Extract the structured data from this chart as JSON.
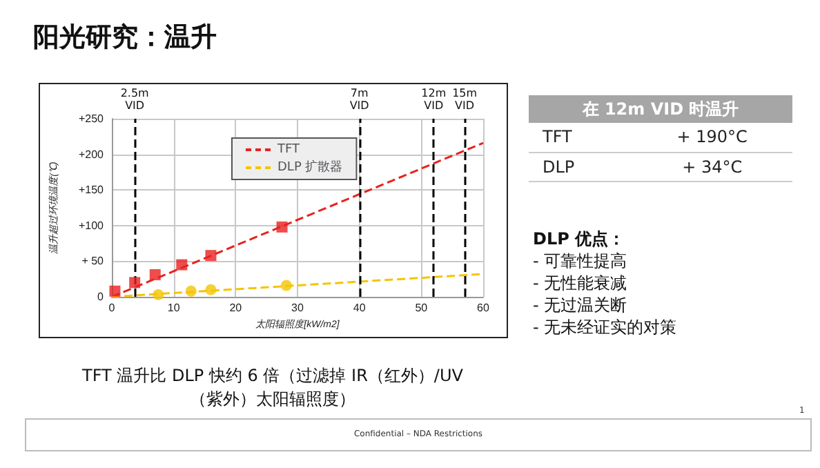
{
  "chart_data": {
    "type": "scatter",
    "title": "阳光研究：温升",
    "xlabel": "太阳辐照度[kW/m2]",
    "ylabel": "温升超过环境温度(℃)",
    "xlim": [
      0,
      60
    ],
    "xticks": [
      0,
      10,
      20,
      30,
      40,
      50,
      60
    ],
    "ylim": [
      0,
      250
    ],
    "yticks": [
      {
        "value": 0,
        "label": "0"
      },
      {
        "value": 50,
        "label": "+ 50"
      },
      {
        "value": 100,
        "label": "+100"
      },
      {
        "value": 150,
        "label": "+150"
      },
      {
        "value": 200,
        "label": "+200"
      },
      {
        "value": 250,
        "label": "+250"
      }
    ],
    "grid": true,
    "legend": "top left",
    "series": [
      {
        "type": "line",
        "name": "TFT",
        "color": "#e8211f",
        "x": [
          0,
          60
        ],
        "values": [
          0,
          216
        ],
        "line_style": "dashed",
        "marker": "none"
      },
      {
        "type": "line",
        "name": "DLP 扩散器",
        "color": "#f5c400",
        "x": [
          0,
          60
        ],
        "values": [
          0,
          32
        ],
        "line_style": "dashed",
        "marker": "none"
      },
      {
        "color": "#e8211f",
        "x": [
          0.5,
          3.7,
          7,
          11.3,
          16,
          27.5
        ],
        "values": [
          8,
          20,
          31,
          45,
          58,
          98
        ],
        "marker": "square"
      },
      {
        "color": "#f5c400",
        "x": [
          7.5,
          12.8,
          16,
          28.2
        ],
        "values": [
          3,
          8,
          10,
          16
        ],
        "marker": "circle"
      }
    ],
    "ref_lines": [
      {
        "axis": "x",
        "value": 3.7,
        "label": "2.5m VID",
        "color": "#000000",
        "line_style": "dashed"
      },
      {
        "axis": "x",
        "value": 40,
        "label": "7m VID",
        "color": "#000000",
        "line_style": "dashed"
      },
      {
        "axis": "x",
        "value": 52,
        "label": "12m VID",
        "color": "#000000",
        "line_style": "dashed"
      },
      {
        "axis": "x",
        "value": 57,
        "label": "15m VID",
        "color": "#000000",
        "line_style": "dashed"
      }
    ],
    "annotations": [
      "在 12m VID 时温升",
      "TFT",
      "+ 190°C",
      "DLP",
      "+ 34°C",
      "DLP 优点：",
      "- 可靠性提高",
      "- 无性能衰减",
      "- 无过温关断",
      "- 无未经证实的对策",
      "TFT 温升比 DLP 快约 6 倍（过滤掉 IR（红外）/UV（紫外）太阳辐照度）",
      "Confidential – NDA Restrictions",
      "1"
    ]
  }
}
